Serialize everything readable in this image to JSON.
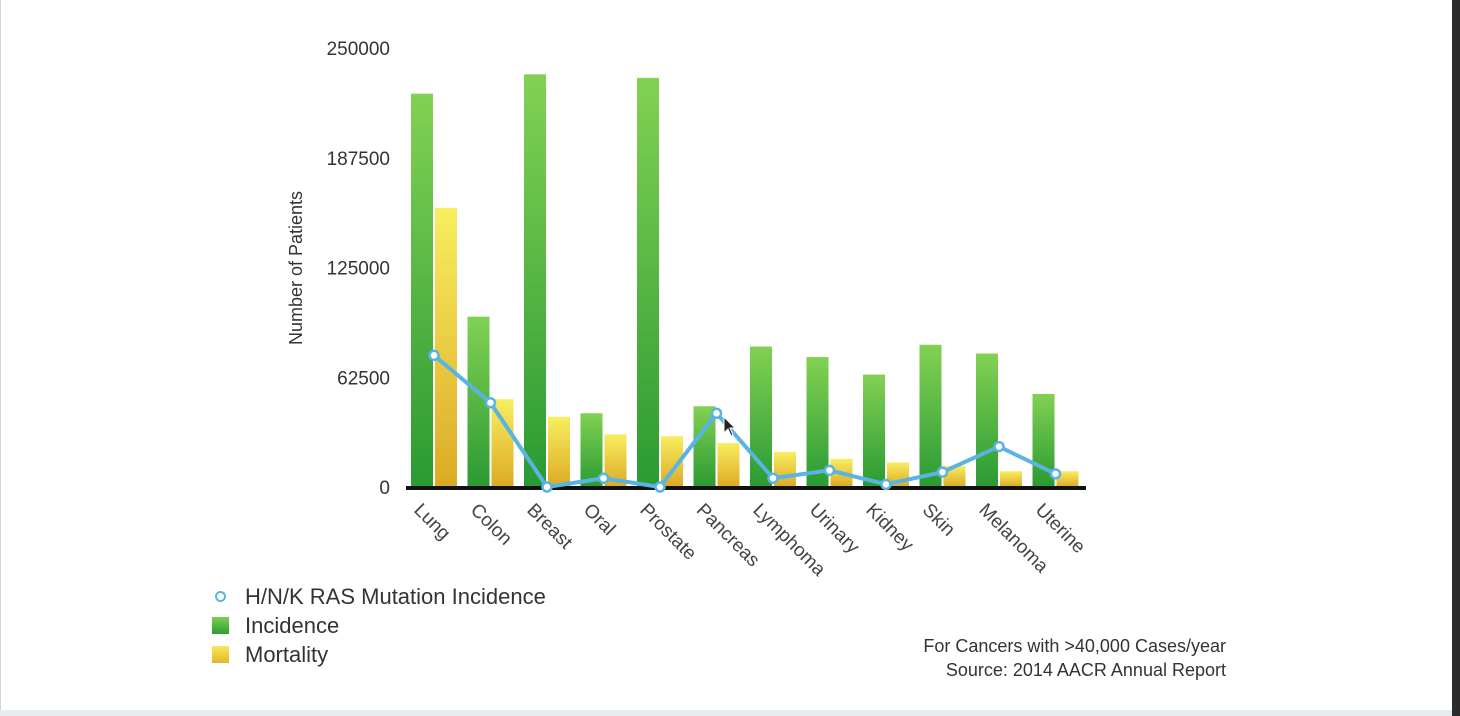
{
  "chart_data": {
    "type": "bar",
    "title": "",
    "xlabel": "",
    "ylabel": "Number of Patients",
    "ylim": [
      0,
      250000
    ],
    "yticks": [
      "0",
      "62500",
      "125000",
      "187500",
      "250000"
    ],
    "categories": [
      "Lung",
      "Colon",
      "Breast",
      "Oral",
      "Prostate",
      "Pancreas",
      "Lymphoma",
      "Urinary",
      "Kidney",
      "Skin",
      "Melanoma",
      "Uterine"
    ],
    "series": [
      {
        "name": "Incidence",
        "kind": "bar",
        "color": "#3fae3a",
        "values": [
          224000,
          97000,
          235000,
          42000,
          233000,
          46000,
          80000,
          74000,
          64000,
          81000,
          76000,
          53000
        ]
      },
      {
        "name": "Mortality",
        "kind": "bar",
        "color": "#efd33f",
        "values": [
          159000,
          50000,
          40000,
          30000,
          29000,
          25000,
          20000,
          16000,
          14000,
          12000,
          9000,
          9000
        ]
      },
      {
        "name": "H/N/K RAS Mutation Incidence",
        "kind": "line",
        "color": "#5ab4e3",
        "values": [
          75000,
          48000,
          0,
          5000,
          0,
          42000,
          5000,
          9500,
          1500,
          8500,
          23000,
          7500
        ]
      }
    ],
    "legend": [
      "H/N/K RAS Mutation Incidence",
      "Incidence",
      "Mortality"
    ],
    "legend_position": "bottom-left"
  },
  "footnote": {
    "line1": "For Cancers with >40,000 Cases/year",
    "line2": "Source:  2014 AACR Annual Report"
  }
}
